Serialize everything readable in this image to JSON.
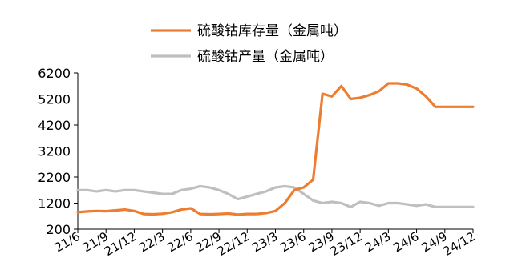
{
  "chart_data": {
    "type": "line",
    "title": "",
    "xlabel": "",
    "ylabel": "",
    "ylim": [
      200,
      6200
    ],
    "yticks": [
      200,
      1200,
      2200,
      3200,
      4200,
      5200,
      6200
    ],
    "xtick_labels": [
      "21/6",
      "21/9",
      "21/12",
      "22/3",
      "22/6",
      "22/9",
      "22/12",
      "23/3",
      "23/6",
      "23/9",
      "23/12",
      "24/3",
      "24/6",
      "24/9",
      "24/12"
    ],
    "x": [
      "21/6",
      "21/7",
      "21/8",
      "21/9",
      "21/10",
      "21/11",
      "21/12",
      "22/1",
      "22/2",
      "22/3",
      "22/4",
      "22/5",
      "22/6",
      "22/7",
      "22/8",
      "22/9",
      "22/10",
      "22/11",
      "22/12",
      "23/1",
      "23/2",
      "23/3",
      "23/4",
      "23/5",
      "23/6",
      "23/7",
      "23/8",
      "23/9",
      "23/10",
      "23/11",
      "23/12",
      "24/1",
      "24/2",
      "24/3",
      "24/4",
      "24/5",
      "24/6",
      "24/7",
      "24/8",
      "24/9",
      "24/10",
      "24/11",
      "24/12"
    ],
    "legend_position": "top-center",
    "grid": false,
    "series": [
      {
        "name": "硫酸钴库存量（金属吨）",
        "color": "#ED7D31",
        "values": [
          850,
          880,
          900,
          890,
          920,
          950,
          900,
          780,
          770,
          790,
          850,
          950,
          1000,
          780,
          770,
          780,
          800,
          760,
          780,
          780,
          820,
          900,
          1200,
          1700,
          1800,
          2100,
          5400,
          5300,
          5700,
          5200,
          5250,
          5350,
          5500,
          5800,
          5800,
          5750,
          5600,
          5300,
          4900,
          4900,
          4900,
          4900,
          4900
        ]
      },
      {
        "name": "硫酸钴产量（金属吨）",
        "color": "#BFBFBF",
        "values": [
          1700,
          1700,
          1650,
          1700,
          1650,
          1700,
          1700,
          1650,
          1600,
          1550,
          1550,
          1700,
          1750,
          1850,
          1800,
          1700,
          1550,
          1350,
          1450,
          1550,
          1650,
          1800,
          1850,
          1800,
          1550,
          1300,
          1200,
          1250,
          1200,
          1050,
          1250,
          1200,
          1100,
          1200,
          1200,
          1150,
          1100,
          1150,
          1050,
          1050,
          1050,
          1050,
          1050
        ]
      }
    ]
  }
}
